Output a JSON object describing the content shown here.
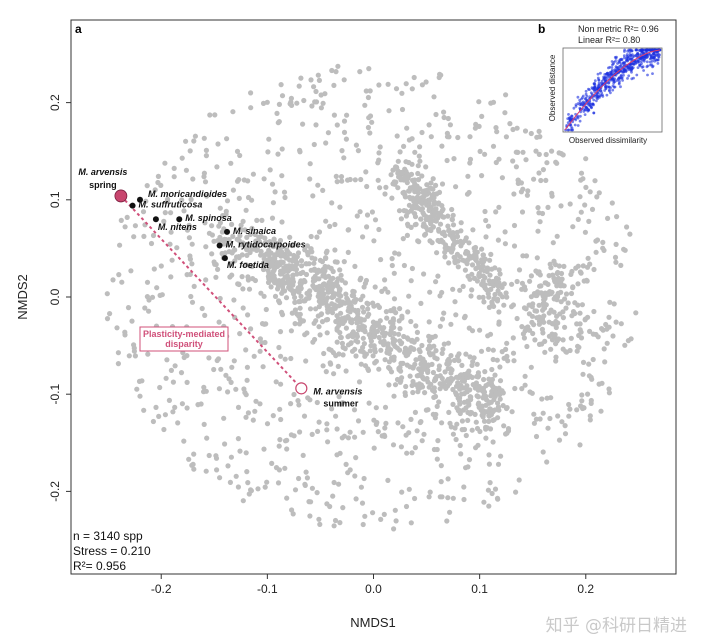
{
  "chart_data": {
    "type": "scatter",
    "panel_label": "a",
    "xlabel": "NMDS1",
    "ylabel": "NMDS2",
    "xlim": [
      -0.285,
      0.285
    ],
    "ylim": [
      -0.285,
      0.285
    ],
    "x_ticks": [
      -0.2,
      -0.1,
      0.0,
      0.1,
      0.2
    ],
    "x_tick_labels": [
      "-0.2",
      "-0.1",
      "0.0",
      "0.1",
      "0.2"
    ],
    "y_ticks": [
      -0.2,
      -0.1,
      0.0,
      0.1,
      0.2
    ],
    "y_tick_labels": [
      "-0.2",
      "-0.1",
      "0.0",
      "0.1",
      "0.2"
    ],
    "background_points": {
      "n": 3140,
      "color": "#bdbdbd"
    },
    "labeled_species": [
      {
        "name": "M. arvensis spring",
        "line1": "M. arvensis",
        "line2": "spring",
        "x": -0.238,
        "y": 0.104,
        "color": "#c8466e",
        "marker": "large-filled"
      },
      {
        "name": "M. moricandioides",
        "x": -0.22,
        "y": 0.1,
        "color": "#111111",
        "marker": "filled"
      },
      {
        "name": "M. suffruticosa",
        "x": -0.227,
        "y": 0.094,
        "color": "#111111",
        "marker": "filled"
      },
      {
        "name": "M. spinosa",
        "x": -0.183,
        "y": 0.08,
        "color": "#111111",
        "marker": "filled"
      },
      {
        "name": "M. nitens",
        "x": -0.205,
        "y": 0.08,
        "color": "#111111",
        "marker": "filled"
      },
      {
        "name": "M. sinaica",
        "x": -0.138,
        "y": 0.067,
        "color": "#111111",
        "marker": "filled"
      },
      {
        "name": "M. rytidocarpoides",
        "x": -0.145,
        "y": 0.053,
        "color": "#111111",
        "marker": "filled"
      },
      {
        "name": "M. foetida",
        "x": -0.14,
        "y": 0.04,
        "color": "#111111",
        "marker": "filled"
      },
      {
        "name": "M. arvensis summer",
        "line1": "M. arvensis",
        "line2": "summer",
        "x": -0.068,
        "y": -0.094,
        "color": "#c8466e",
        "marker": "large-open"
      }
    ],
    "annotation_box": {
      "line1": "Plasticity-mediated",
      "line2": "disparity",
      "color": "#d0507a"
    },
    "stats": {
      "n": "n = 3140 spp",
      "stress": "Stress = 0.210",
      "r2": "R²= 0.956"
    },
    "inset": {
      "panel_label": "b",
      "nonmetric": "Non metric R²= 0.96",
      "linear": "Linear R²= 0.80",
      "xlabel": "Observed dissimilarity",
      "ylabel": "Observed distance",
      "point_color": "#1a2ee0",
      "fit_color": "#e03a6a"
    }
  },
  "watermark": "知乎 @科研日精进"
}
